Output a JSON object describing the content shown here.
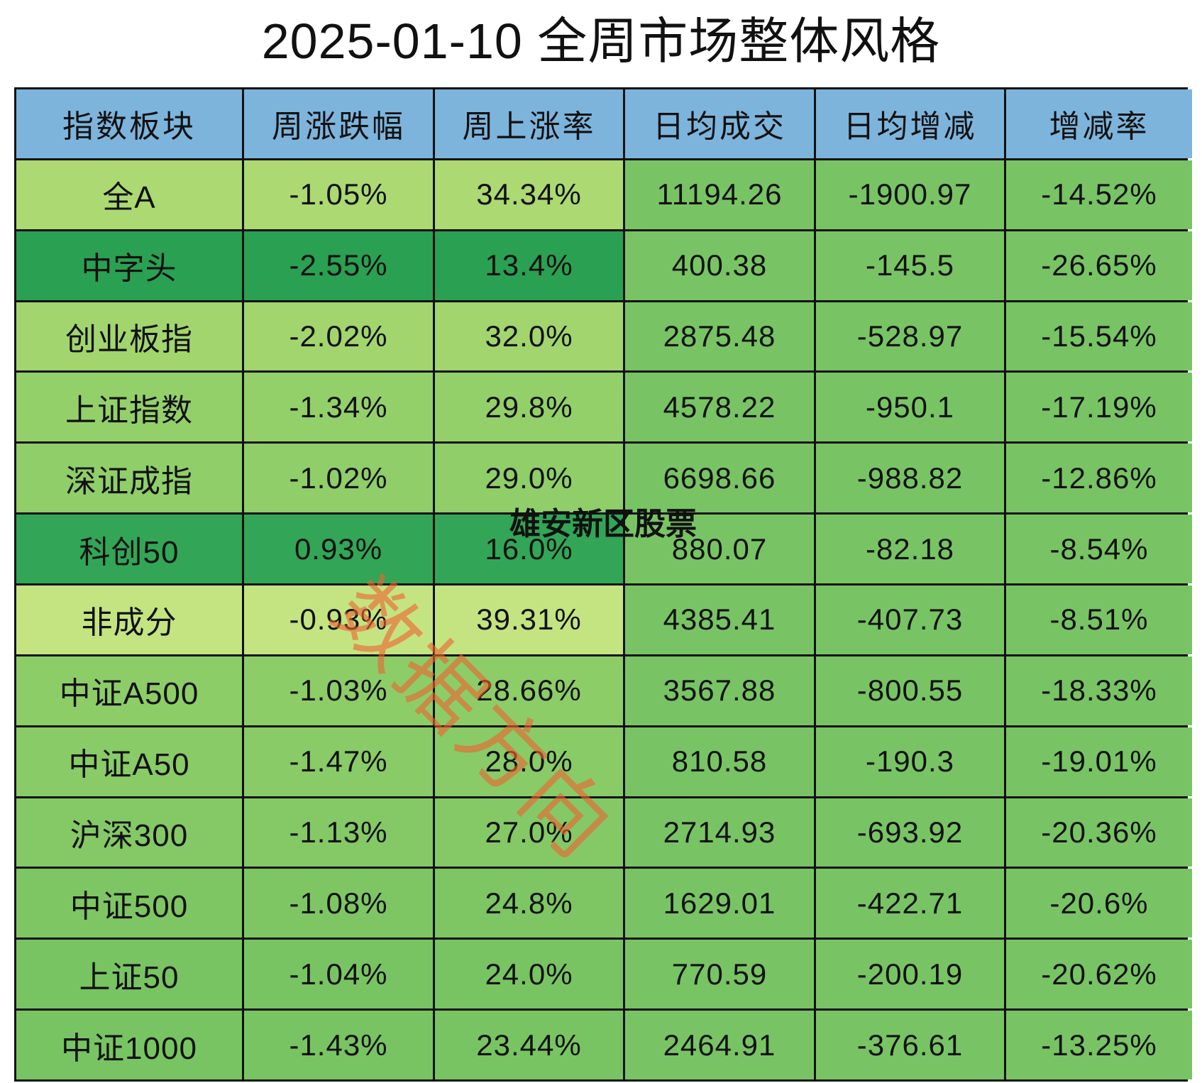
{
  "title": "2025-01-10 全周市场整体风格",
  "headers": [
    "指数板块",
    "周涨跌幅",
    "周上涨率",
    "日均成交",
    "日均增减",
    "增减率"
  ],
  "colors": {
    "header_bg": "#7db4dc",
    "border": "#111111",
    "metric_bg": "#78c464",
    "watermark": "#ee6432"
  },
  "rows": [
    {
      "name": "全A",
      "weekly_change": "-1.05%",
      "weekly_up_rate": "34.34%",
      "daily_avg_volume": "11194.26",
      "daily_avg_delta": "-1900.97",
      "delta_rate": "-14.52%",
      "bg": "#acd972"
    },
    {
      "name": "中字头",
      "weekly_change": "-2.55%",
      "weekly_up_rate": "13.4%",
      "daily_avg_volume": "400.38",
      "daily_avg_delta": "-145.5",
      "delta_rate": "-26.65%",
      "bg": "#2aa052"
    },
    {
      "name": "创业板指",
      "weekly_change": "-2.02%",
      "weekly_up_rate": "32.0%",
      "daily_avg_volume": "2875.48",
      "daily_avg_delta": "-528.97",
      "delta_rate": "-15.54%",
      "bg": "#a2d56e"
    },
    {
      "name": "上证指数",
      "weekly_change": "-1.34%",
      "weekly_up_rate": "29.8%",
      "daily_avg_volume": "4578.22",
      "daily_avg_delta": "-950.1",
      "delta_rate": "-17.19%",
      "bg": "#94d06a"
    },
    {
      "name": "深证成指",
      "weekly_change": "-1.02%",
      "weekly_up_rate": "29.0%",
      "daily_avg_volume": "6698.66",
      "daily_avg_delta": "-988.82",
      "delta_rate": "-12.86%",
      "bg": "#8fce69"
    },
    {
      "name": "科创50",
      "weekly_change": "0.93%",
      "weekly_up_rate": "16.0%",
      "daily_avg_volume": "880.07",
      "daily_avg_delta": "-82.18",
      "delta_rate": "-8.54%",
      "bg": "#32a656"
    },
    {
      "name": "非成分",
      "weekly_change": "-0.93%",
      "weekly_up_rate": "39.31%",
      "daily_avg_volume": "4385.41",
      "daily_avg_delta": "-407.73",
      "delta_rate": "-8.51%",
      "bg": "#c4e482"
    },
    {
      "name": "中证A500",
      "weekly_change": "-1.03%",
      "weekly_up_rate": "28.66%",
      "daily_avg_volume": "3567.88",
      "daily_avg_delta": "-800.55",
      "delta_rate": "-18.33%",
      "bg": "#8ccd68"
    },
    {
      "name": "中证A50",
      "weekly_change": "-1.47%",
      "weekly_up_rate": "28.0%",
      "daily_avg_volume": "810.58",
      "daily_avg_delta": "-190.3",
      "delta_rate": "-19.01%",
      "bg": "#89cb67"
    },
    {
      "name": "沪深300",
      "weekly_change": "-1.13%",
      "weekly_up_rate": "27.0%",
      "daily_avg_volume": "2714.93",
      "daily_avg_delta": "-693.92",
      "delta_rate": "-20.36%",
      "bg": "#84c965"
    },
    {
      "name": "中证500",
      "weekly_change": "-1.08%",
      "weekly_up_rate": "24.8%",
      "daily_avg_volume": "1629.01",
      "daily_avg_delta": "-422.71",
      "delta_rate": "-20.6%",
      "bg": "#7ec663"
    },
    {
      "name": "上证50",
      "weekly_change": "-1.04%",
      "weekly_up_rate": "24.0%",
      "daily_avg_volume": "770.59",
      "daily_avg_delta": "-200.19",
      "delta_rate": "-20.62%",
      "bg": "#79c462"
    },
    {
      "name": "中证1000",
      "weekly_change": "-1.43%",
      "weekly_up_rate": "23.44%",
      "daily_avg_volume": "2464.91",
      "daily_avg_delta": "-376.61",
      "delta_rate": "-13.25%",
      "bg": "#78c462"
    }
  ],
  "overlay_text": "雄安新区股票",
  "watermark": "数据方向"
}
